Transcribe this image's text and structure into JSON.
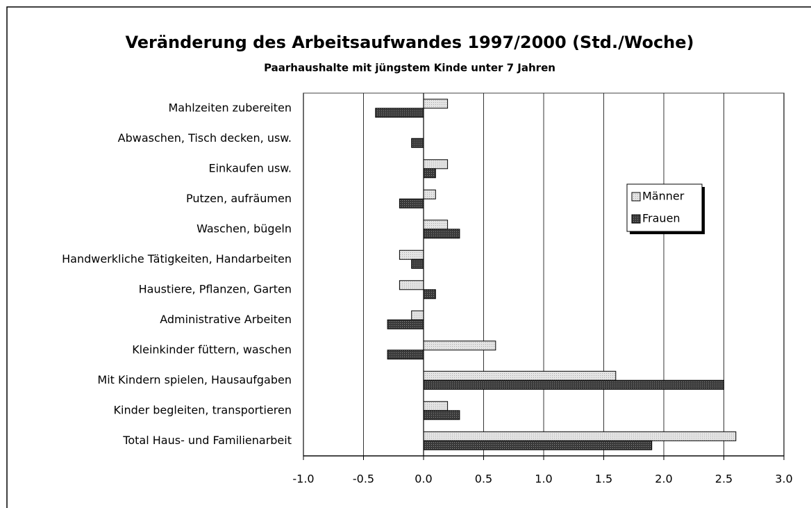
{
  "chart_data": {
    "type": "bar",
    "orientation": "horizontal",
    "title": "Veränderung des Arbeitsaufwandes 1997/2000 (Std./Woche)",
    "subtitle": "Paarhaushalte mit jüngstem Kinde unter 7 Jahren",
    "categories": [
      "Mahlzeiten zubereiten",
      "Abwaschen, Tisch decken, usw.",
      "Einkaufen usw.",
      "Putzen, aufräumen",
      "Waschen, bügeln",
      "Handwerkliche Tätigkeiten, Handarbeiten",
      "Haustiere, Pflanzen, Garten",
      "Administrative Arbeiten",
      "Kleinkinder füttern, waschen",
      "Mit Kindern spielen, Hausaufgaben",
      "Kinder begleiten, transportieren",
      "Total Haus- und Familienarbeit"
    ],
    "series": [
      {
        "name": "Männer",
        "color": "#d9d9d9",
        "values": [
          0.2,
          0,
          0.2,
          0.1,
          0.2,
          -0.2,
          -0.2,
          -0.1,
          0.6,
          1.6,
          0.2,
          2.6
        ]
      },
      {
        "name": "Frauen",
        "color": "#404040",
        "values": [
          -0.4,
          -0.1,
          0.1,
          -0.2,
          0.3,
          -0.1,
          0.1,
          -0.3,
          -0.3,
          2.5,
          0.3,
          1.9
        ]
      }
    ],
    "xlim": [
      -1,
      3
    ],
    "xticks": [
      {
        "value": -1,
        "label": "-1.0"
      },
      {
        "value": -0.5,
        "label": "-0.5"
      },
      {
        "value": 0,
        "label": "0.0"
      },
      {
        "value": 0.5,
        "label": "0.5"
      },
      {
        "value": 1,
        "label": "1.0"
      },
      {
        "value": 1.5,
        "label": "1.5"
      },
      {
        "value": 2,
        "label": "2.0"
      },
      {
        "value": 2.5,
        "label": "2.5"
      },
      {
        "value": 3,
        "label": "3.0"
      }
    ],
    "grid": true,
    "legend": "right"
  }
}
